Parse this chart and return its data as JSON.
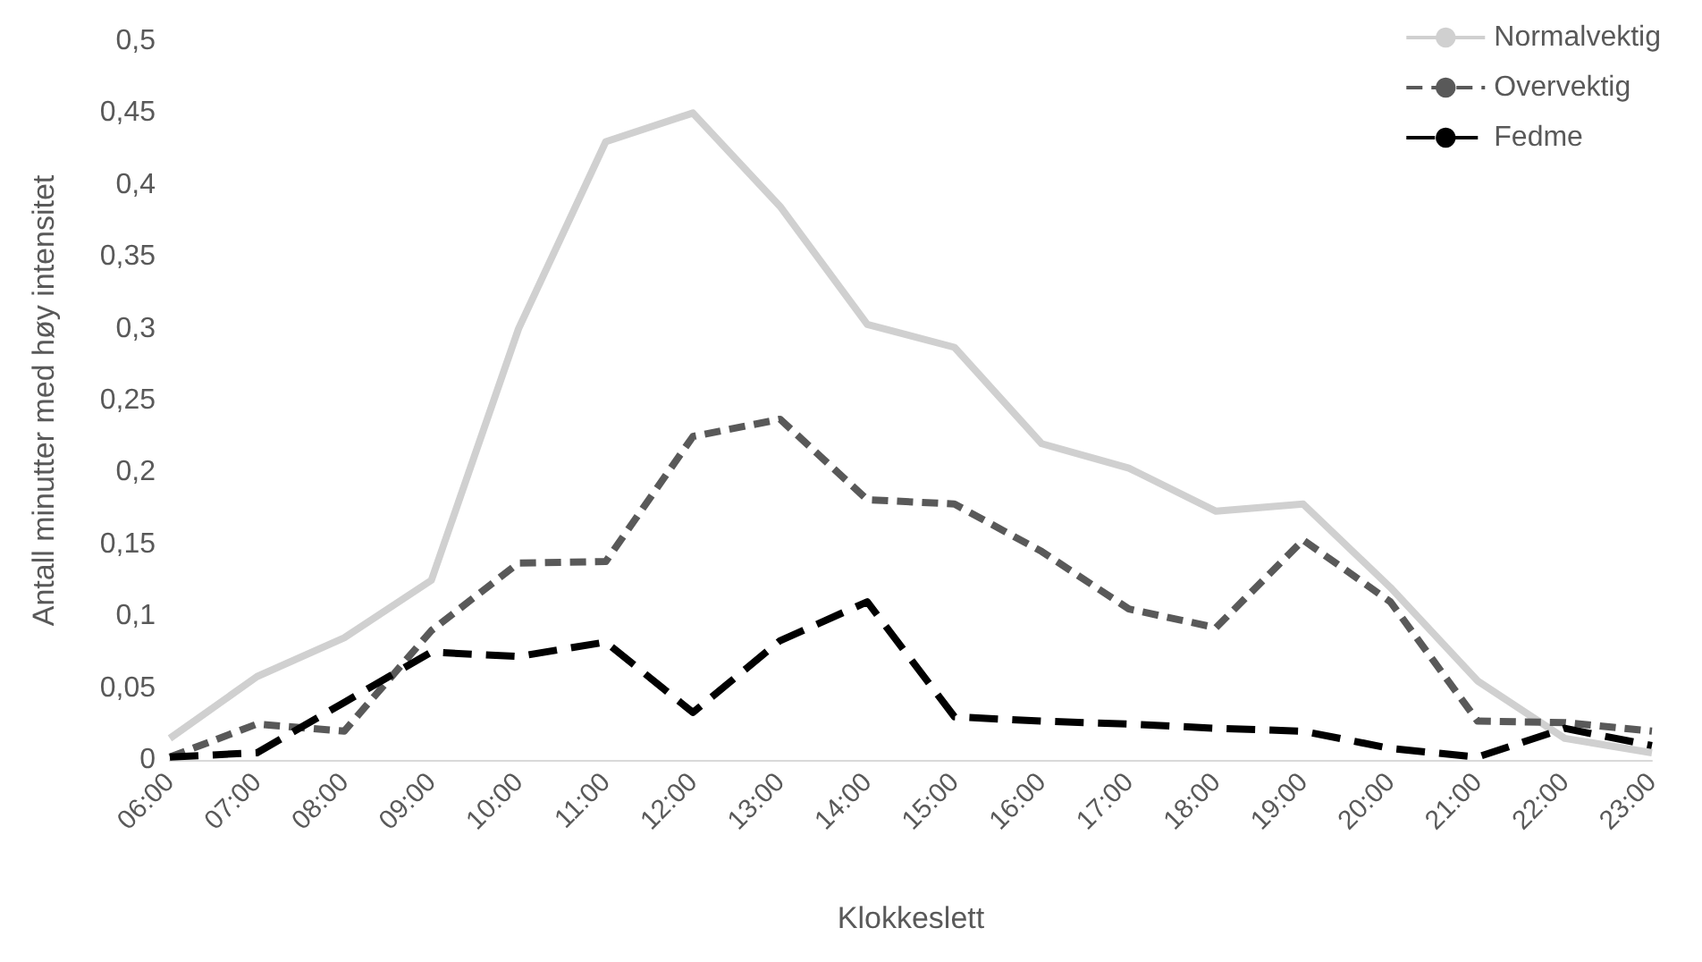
{
  "chart_data": {
    "type": "line",
    "xlabel": "Klokkeslett",
    "ylabel": "Antall minutter med høy intensitet",
    "categories": [
      "06:00",
      "07:00",
      "08:00",
      "09:00",
      "10:00",
      "11:00",
      "12:00",
      "13:00",
      "14:00",
      "15:00",
      "16:00",
      "17:00",
      "18:00",
      "19:00",
      "20:00",
      "21:00",
      "22:00",
      "23:00"
    ],
    "series": [
      {
        "name": "Normalvektig",
        "color": "#d0d0d0",
        "line_style": "solid",
        "values": [
          0.015,
          0.058,
          0.085,
          0.125,
          0.3,
          0.43,
          0.45,
          0.385,
          0.303,
          0.287,
          0.22,
          0.203,
          0.173,
          0.178,
          0.12,
          0.055,
          0.015,
          0.005
        ]
      },
      {
        "name": "Overvektig",
        "color": "#595959",
        "line_style": "dashed",
        "values": [
          0.002,
          0.025,
          0.02,
          0.09,
          0.137,
          0.138,
          0.225,
          0.237,
          0.181,
          0.178,
          0.145,
          0.105,
          0.092,
          0.153,
          0.11,
          0.027,
          0.026,
          0.02
        ]
      },
      {
        "name": "Fedme",
        "color": "#000000",
        "line_style": "dashed",
        "values": [
          0.002,
          0.005,
          0.04,
          0.075,
          0.072,
          0.082,
          0.033,
          0.083,
          0.11,
          0.03,
          0.027,
          0.025,
          0.022,
          0.02,
          0.008,
          0.002,
          0.022,
          0.01
        ]
      }
    ],
    "ylim": [
      0,
      0.5
    ],
    "yticks": [
      0,
      {
        "value": 0.05,
        "label": "0,05"
      },
      {
        "value": 0.1,
        "label": "0,1"
      },
      {
        "value": 0.15,
        "label": "0,15"
      },
      {
        "value": 0.2,
        "label": "0,2"
      },
      {
        "value": 0.25,
        "label": "0,25"
      },
      {
        "value": 0.3,
        "label": "0,3"
      },
      {
        "value": 0.35,
        "label": "0,35"
      },
      {
        "value": 0.4,
        "label": "0,4"
      },
      {
        "value": 0.45,
        "label": "0,45"
      },
      {
        "value": 0.5,
        "label": "0,5"
      }
    ],
    "grid": false,
    "legend": "top right",
    "marker": "none"
  }
}
